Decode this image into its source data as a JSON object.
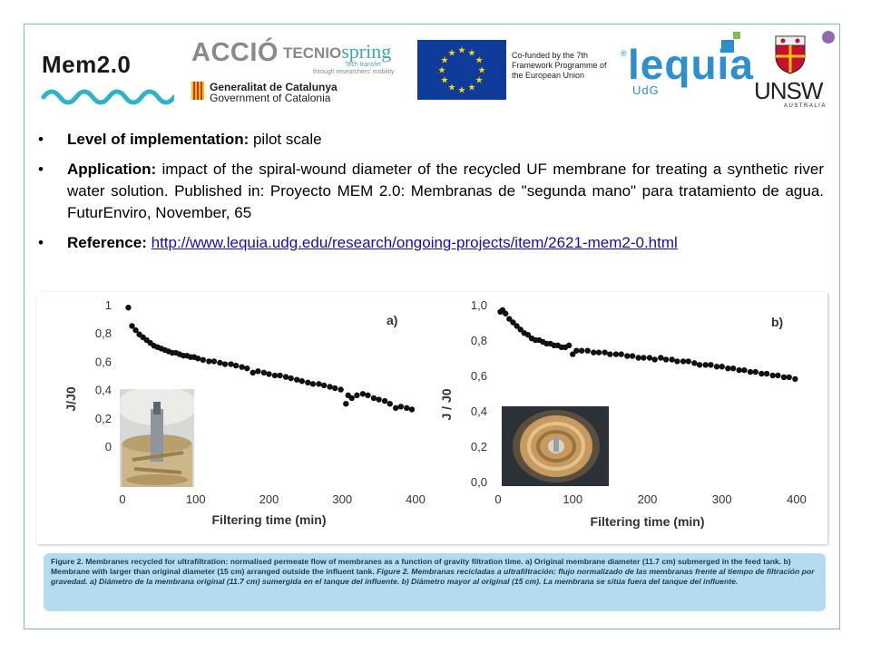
{
  "header": {
    "project_logo": "Mem2.0",
    "logo_accio": "ACCIÓ",
    "logo_tecnio": "TECNIO",
    "logo_spring": "spring",
    "tecnio_sub1": "Tech transfer",
    "tecnio_sub2": "through researchers' mobility",
    "gencat_line1": "Generalitat de Catalunya",
    "gencat_line2": "Government of Catalonia",
    "eu_text": "Co-funded by the 7th Framework Programme of the European Union",
    "lequia_registered": "®",
    "lequia": "lequia",
    "udg": "UdG",
    "unsw": "UNSW",
    "unsw_sub": "AUSTRALIA"
  },
  "bullets": {
    "level_label": "Level of implementation:",
    "level_value": " pilot scale",
    "application_label": "Application:",
    "application_value": " impact of the spiral-wound diameter of the recycled UF membrane for treating a synthetic river water solution. Published in: Proyecto MEM 2.0: Membranas de \"segunda mano\" para tratamiento de agua. FuturEnviro, November, 65",
    "reference_label": "Reference:",
    "reference_url": "http://www.lequia.udg.edu/research/ongoing-projects/item/2621-mem2-0.html",
    "bullet_glyph": "•"
  },
  "caption": {
    "text_en_1": "Figure 2. Membranes recycled for ultrafiltration: normalised permeate flow of membranes as a function of gravity filtration time. a) Original membrane diameter (11.7 cm) submerged in the feed tank. b) Membrane with larger than original diameter (15 cm) arranged outside the influent tank. ",
    "text_es": "Figure 2. Membranas recicladas a ultrafiltración: flujo normalizado de las membranas frente al tiempo de filtración por gravedad. a) Diámetro de la membrana original (11.7 cm) sumergida en el tanque del influente. b) Diámetro mayor al original (15 cm). La membrana se sitúa fuera del tanque del influente."
  },
  "colors": {
    "frame": "#7fb6d8",
    "accent_wave": "#2bb3c8",
    "lequia_blue": "#2b8fd0",
    "caption_bg": "#b4dcf1",
    "eu_blue": "#0f3c9a",
    "eu_star": "#f6d40a"
  },
  "chart_data": [
    {
      "type": "scatter",
      "panel_label": "a)",
      "xlabel": "Filtering time (min)",
      "ylabel": "J/J0",
      "xlim": [
        0,
        400
      ],
      "ylim": [
        0,
        1
      ],
      "xticks": [
        0,
        100,
        200,
        300,
        400
      ],
      "yticks": [
        "0",
        "0,2",
        "0,4",
        "0,6",
        "0,8",
        "1"
      ],
      "ytick_values": [
        0,
        0.2,
        0.4,
        0.6,
        0.8,
        1
      ],
      "marker_color": "#111111",
      "x": [
        8,
        13,
        18,
        23,
        28,
        33,
        38,
        43,
        48,
        53,
        58,
        63,
        68,
        73,
        78,
        83,
        88,
        93,
        98,
        103,
        110,
        118,
        125,
        133,
        140,
        148,
        155,
        163,
        170,
        178,
        185,
        193,
        200,
        208,
        215,
        223,
        230,
        238,
        245,
        253,
        260,
        268,
        275,
        283,
        290,
        298,
        305,
        308,
        313,
        320,
        328,
        335,
        343,
        350,
        358,
        365,
        373,
        380,
        388,
        395
      ],
      "y": [
        0.98,
        0.85,
        0.82,
        0.79,
        0.77,
        0.75,
        0.73,
        0.71,
        0.7,
        0.69,
        0.68,
        0.67,
        0.66,
        0.66,
        0.65,
        0.64,
        0.64,
        0.63,
        0.63,
        0.62,
        0.61,
        0.6,
        0.6,
        0.59,
        0.58,
        0.58,
        0.57,
        0.56,
        0.55,
        0.52,
        0.53,
        0.52,
        0.51,
        0.5,
        0.5,
        0.49,
        0.48,
        0.47,
        0.46,
        0.45,
        0.44,
        0.44,
        0.43,
        0.42,
        0.41,
        0.4,
        0.3,
        0.36,
        0.34,
        0.36,
        0.37,
        0.36,
        0.34,
        0.33,
        0.32,
        0.3,
        0.27,
        0.28,
        0.27,
        0.26
      ]
    },
    {
      "type": "scatter",
      "panel_label": "b)",
      "xlabel": "Filtering time (min)",
      "ylabel": "J / J0",
      "xlim": [
        0,
        400
      ],
      "ylim": [
        0,
        1
      ],
      "xticks": [
        0,
        100,
        200,
        300,
        400
      ],
      "yticks": [
        "0,0",
        "0,2",
        "0,4",
        "0,6",
        "0,8",
        "1,0"
      ],
      "ytick_values": [
        0,
        0.2,
        0.4,
        0.6,
        0.8,
        1
      ],
      "marker_color": "#111111",
      "x": [
        3,
        6,
        10,
        15,
        20,
        25,
        30,
        35,
        40,
        45,
        50,
        55,
        60,
        65,
        70,
        75,
        80,
        85,
        90,
        95,
        100,
        105,
        112,
        120,
        128,
        135,
        143,
        150,
        158,
        165,
        173,
        180,
        188,
        195,
        203,
        210,
        218,
        225,
        233,
        240,
        248,
        255,
        263,
        270,
        278,
        285,
        293,
        300,
        308,
        315,
        323,
        330,
        338,
        345,
        353,
        360,
        368,
        375,
        383,
        390,
        398
      ],
      "y": [
        0.96,
        0.97,
        0.95,
        0.92,
        0.9,
        0.88,
        0.86,
        0.84,
        0.83,
        0.81,
        0.8,
        0.8,
        0.79,
        0.78,
        0.78,
        0.77,
        0.77,
        0.76,
        0.76,
        0.77,
        0.72,
        0.74,
        0.74,
        0.74,
        0.73,
        0.73,
        0.73,
        0.72,
        0.72,
        0.72,
        0.71,
        0.71,
        0.7,
        0.7,
        0.7,
        0.69,
        0.7,
        0.69,
        0.69,
        0.68,
        0.68,
        0.68,
        0.67,
        0.66,
        0.66,
        0.66,
        0.65,
        0.65,
        0.64,
        0.64,
        0.63,
        0.63,
        0.62,
        0.62,
        0.61,
        0.61,
        0.6,
        0.6,
        0.59,
        0.59,
        0.58
      ]
    }
  ]
}
